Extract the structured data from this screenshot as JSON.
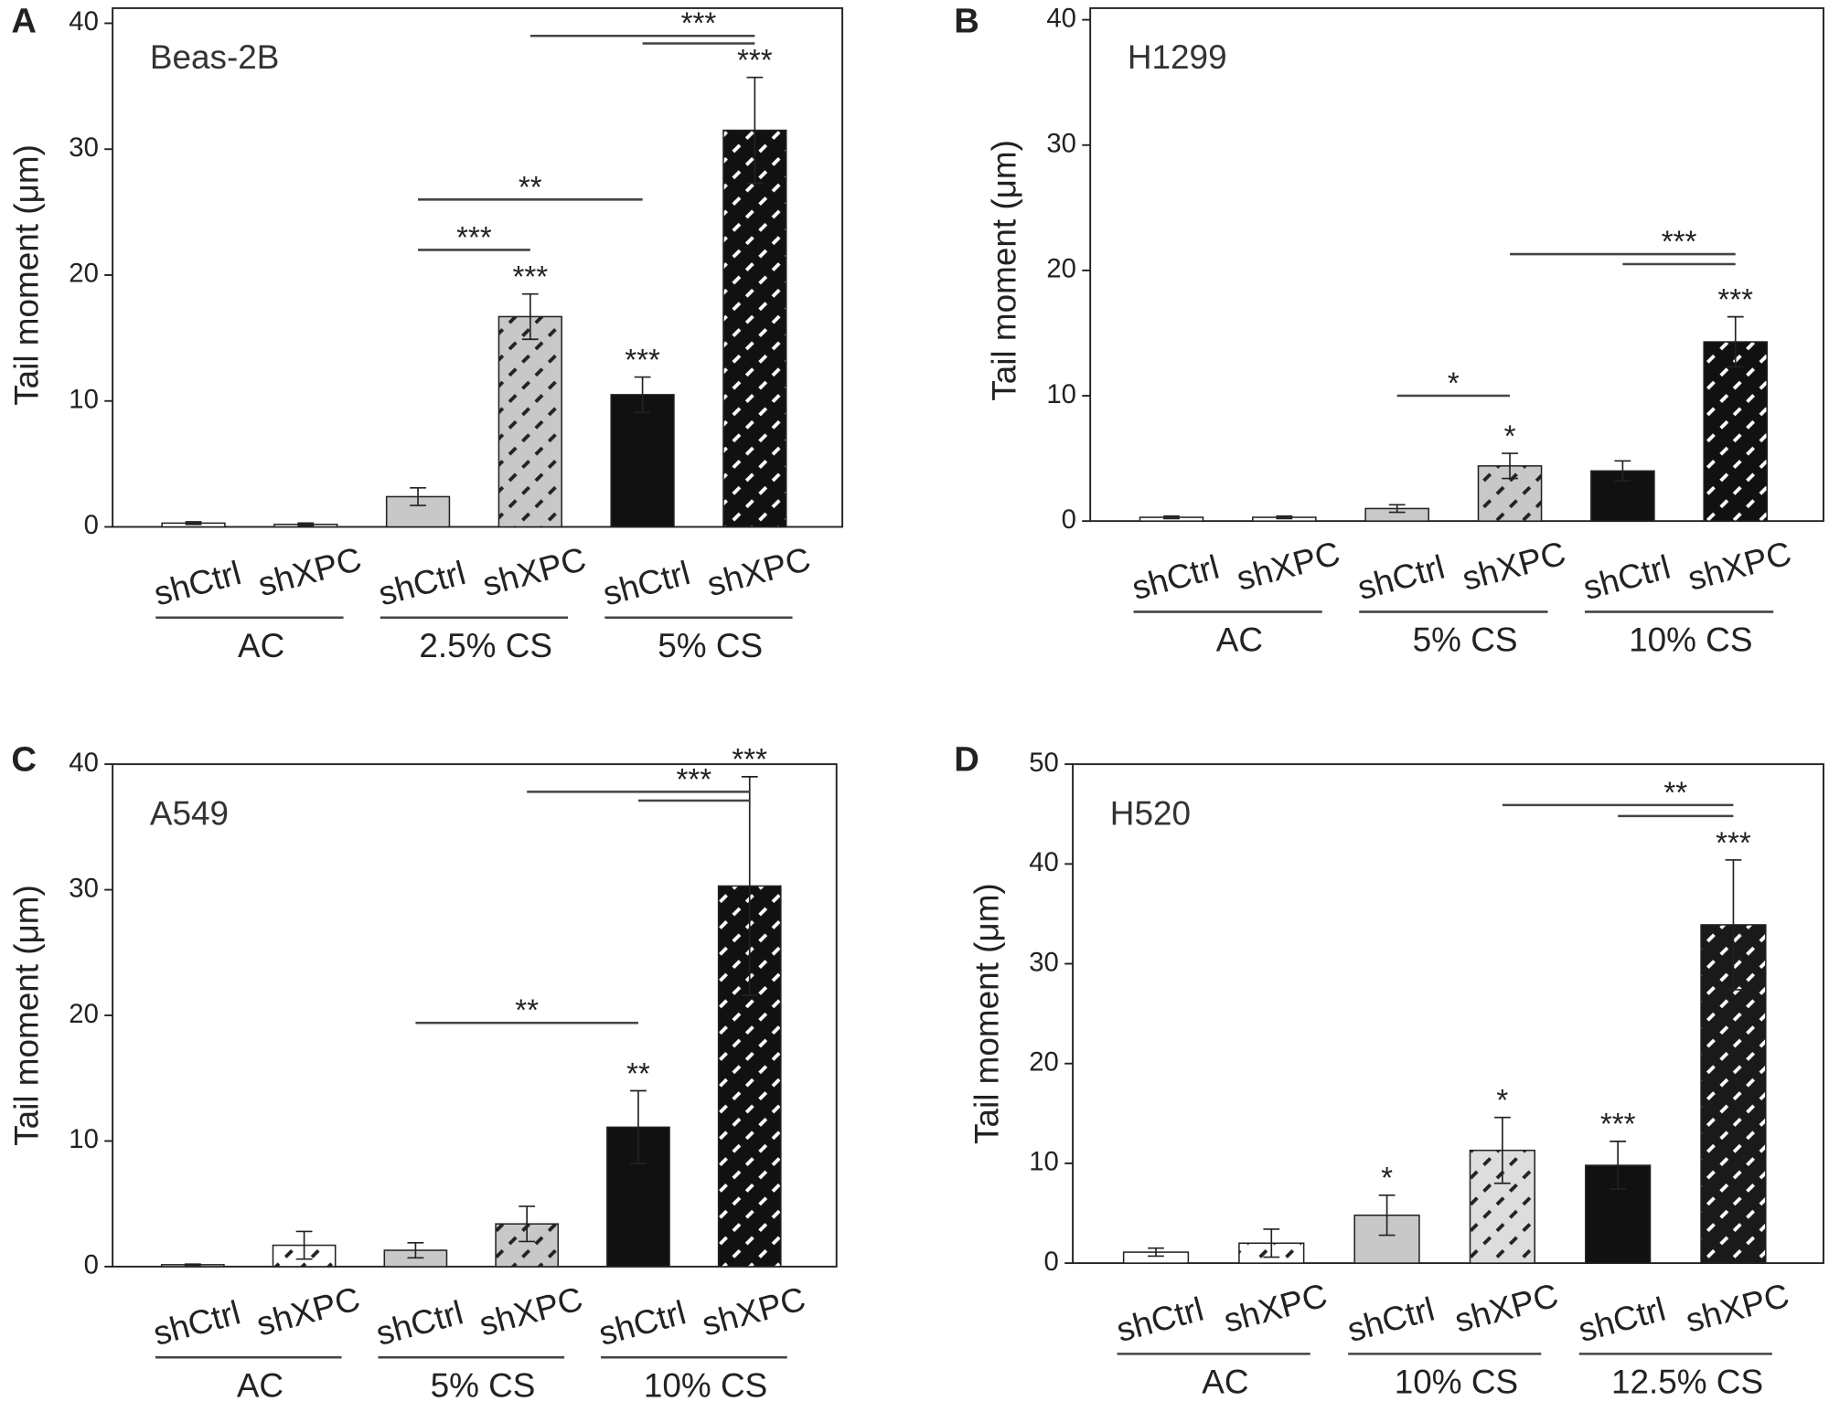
{
  "chart_data": [
    {
      "type": "bar",
      "panel": "A",
      "title": "Beas-2B",
      "ylabel": "Tail moment (μm)",
      "categories": [
        "shCtrl",
        "shXPC",
        "shCtrl",
        "shXPC",
        "shCtrl",
        "shXPC"
      ],
      "groups": [
        {
          "label": "AC",
          "size": 2
        },
        {
          "label": "2.5% CS",
          "size": 2
        },
        {
          "label": "5% CS",
          "size": 2
        }
      ],
      "values": [
        0.3,
        0.2,
        2.4,
        16.7,
        10.5,
        31.5
      ],
      "errors": [
        0.1,
        0.1,
        0.7,
        1.8,
        1.4,
        4.2
      ],
      "colors": [
        "#ffffff",
        "#ffffff",
        "#c8c8c8",
        "#c8c8c8",
        "#111111",
        "#111111"
      ],
      "hatch": [
        null,
        null,
        null,
        "#222222",
        null,
        "#ffffff"
      ],
      "stars": [
        null,
        null,
        null,
        "***",
        "***",
        "***"
      ],
      "comparisons": [
        {
          "label": "**",
          "lines": [
            {
              "from": 2,
              "to": 4,
              "y": 26
            }
          ]
        },
        {
          "label": "***",
          "lines": [
            {
              "from": 2,
              "to": 3,
              "y": 22
            }
          ]
        },
        {
          "label": "***",
          "lines": [
            {
              "from": 3,
              "to": 5,
              "y": 39
            },
            {
              "from": 4,
              "to": 5,
              "y": 38.4
            }
          ]
        }
      ],
      "ylim": [
        0,
        40
      ],
      "yticks": [
        0,
        10,
        20,
        30,
        40
      ]
    },
    {
      "type": "bar",
      "panel": "B",
      "title": "H1299",
      "ylabel": "Tail moment (μm)",
      "categories": [
        "shCtrl",
        "shXPC",
        "shCtrl",
        "shXPC",
        "shCtrl",
        "shXPC"
      ],
      "groups": [
        {
          "label": "AC",
          "size": 2
        },
        {
          "label": "5% CS",
          "size": 2
        },
        {
          "label": "10% CS",
          "size": 2
        }
      ],
      "values": [
        0.3,
        0.3,
        1.0,
        4.4,
        4.0,
        14.3
      ],
      "errors": [
        0.1,
        0.1,
        0.3,
        1.0,
        0.8,
        2.0
      ],
      "colors": [
        "#ffffff",
        "#ffffff",
        "#c8c8c8",
        "#c8c8c8",
        "#111111",
        "#111111"
      ],
      "hatch": [
        null,
        null,
        null,
        "#222222",
        null,
        "#ffffff"
      ],
      "stars": [
        null,
        null,
        null,
        "*",
        null,
        "***"
      ],
      "comparisons": [
        {
          "label": "*",
          "lines": [
            {
              "from": 2,
              "to": 3,
              "y": 10
            }
          ]
        },
        {
          "label": "***",
          "lines": [
            {
              "from": 3,
              "to": 5,
              "y": 21.3
            },
            {
              "from": 4,
              "to": 5,
              "y": 20.5
            }
          ]
        }
      ],
      "ylim": [
        0,
        40
      ],
      "yticks": [
        0,
        10,
        20,
        30,
        40
      ]
    },
    {
      "type": "bar",
      "panel": "C",
      "title": "A549",
      "ylabel": "Tail moment (μm)",
      "categories": [
        "shCtrl",
        "shXPC",
        "shCtrl",
        "shXPC",
        "shCtrl",
        "shXPC"
      ],
      "groups": [
        {
          "label": "AC",
          "size": 2
        },
        {
          "label": "5% CS",
          "size": 2
        },
        {
          "label": "10% CS",
          "size": 2
        }
      ],
      "values": [
        0.15,
        1.7,
        1.3,
        3.4,
        11.1,
        30.3
      ],
      "errors": [
        0.05,
        1.1,
        0.6,
        1.4,
        2.9,
        8.7
      ],
      "colors": [
        "#ffffff",
        "#ffffff",
        "#c8c8c8",
        "#c8c8c8",
        "#111111",
        "#111111"
      ],
      "hatch": [
        null,
        "#222222",
        null,
        "#222222",
        null,
        "#ffffff"
      ],
      "stars": [
        null,
        null,
        null,
        null,
        "**",
        "***"
      ],
      "comparisons": [
        {
          "label": "**",
          "lines": [
            {
              "from": 2,
              "to": 4,
              "y": 19.4
            }
          ]
        },
        {
          "label": "***",
          "lines": [
            {
              "from": 3,
              "to": 5,
              "y": 37.8
            },
            {
              "from": 4,
              "to": 5,
              "y": 37.1
            }
          ]
        }
      ],
      "ylim": [
        0,
        40
      ],
      "yticks": [
        0,
        10,
        20,
        30,
        40
      ]
    },
    {
      "type": "bar",
      "panel": "D",
      "title": "H520",
      "ylabel": "Tail moment (μm)",
      "categories": [
        "shCtrl",
        "shXPC",
        "shCtrl",
        "shXPC",
        "shCtrl",
        "shXPC"
      ],
      "groups": [
        {
          "label": "AC",
          "size": 2
        },
        {
          "label": "10% CS",
          "size": 2
        },
        {
          "label": "12.5% CS",
          "size": 2
        }
      ],
      "values": [
        1.1,
        2.0,
        4.8,
        11.3,
        9.8,
        33.9
      ],
      "errors": [
        0.4,
        1.4,
        2.0,
        3.3,
        2.4,
        6.5
      ],
      "colors": [
        "#ffffff",
        "#ffffff",
        "#c8c8c8",
        "#dddddd",
        "#111111",
        "#1a1a1a"
      ],
      "hatch": [
        null,
        "#222222",
        null,
        "#222222",
        null,
        "#ffffff"
      ],
      "stars": [
        null,
        null,
        "*",
        "*",
        "***",
        "***"
      ],
      "comparisons": [
        {
          "label": "**",
          "lines": [
            {
              "from": 3,
              "to": 5,
              "y": 45.9
            },
            {
              "from": 4,
              "to": 5,
              "y": 44.8
            }
          ]
        }
      ],
      "ylim": [
        0,
        50
      ],
      "yticks": [
        0,
        10,
        20,
        30,
        40,
        50
      ]
    }
  ]
}
